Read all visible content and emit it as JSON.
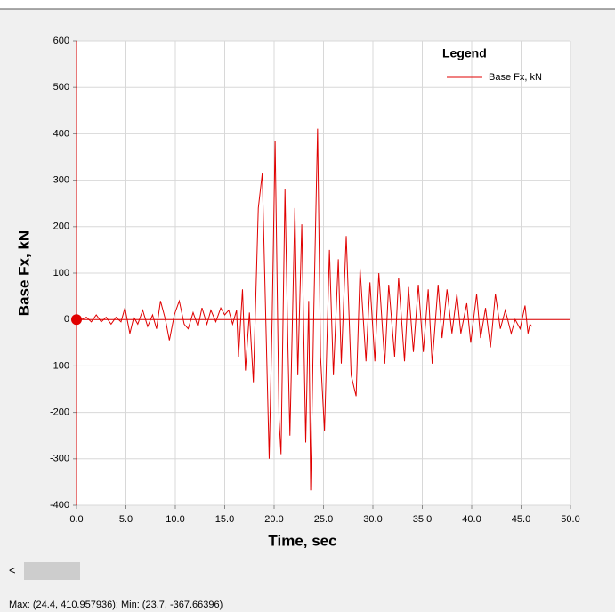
{
  "chart_data": {
    "type": "line",
    "ylabel": "Base Fx,  kN",
    "xlabel": "Time,  sec",
    "legend_title": "Legend",
    "legend": "top-right",
    "grid": true,
    "xlim": [
      0,
      50
    ],
    "ylim": [
      -400,
      600
    ],
    "xticks": [
      {
        "value": 0,
        "label": "0.0"
      },
      {
        "value": 5,
        "label": "5.0"
      },
      {
        "value": 10,
        "label": "10.0"
      },
      {
        "value": 15,
        "label": "15.0"
      },
      {
        "value": 20,
        "label": "20.0"
      },
      {
        "value": 25,
        "label": "25.0"
      },
      {
        "value": 30,
        "label": "30.0"
      },
      {
        "value": 35,
        "label": "35.0"
      },
      {
        "value": 40,
        "label": "40.0"
      },
      {
        "value": 45,
        "label": "45.0"
      },
      {
        "value": 50,
        "label": "50.0"
      }
    ],
    "yticks": [
      -400,
      -300,
      -200,
      -100,
      0,
      100,
      200,
      300,
      400,
      500,
      600
    ],
    "x": [
      0,
      0.5,
      1.0,
      1.5,
      2.0,
      2.5,
      3.0,
      3.5,
      4.0,
      4.5,
      4.9,
      5.4,
      5.8,
      6.2,
      6.7,
      7.2,
      7.7,
      8.1,
      8.5,
      9.0,
      9.4,
      9.9,
      10.4,
      10.9,
      11.3,
      11.8,
      12.3,
      12.7,
      13.2,
      13.6,
      14.1,
      14.6,
      15.0,
      15.4,
      15.8,
      16.2,
      16.4,
      16.8,
      17.1,
      17.5,
      17.9,
      18.4,
      18.8,
      19.5,
      19.8,
      20.1,
      20.5,
      20.7,
      21.1,
      21.4,
      21.6,
      22.1,
      22.4,
      22.8,
      23.2,
      23.5,
      23.7,
      24.0,
      24.4,
      24.7,
      25.1,
      25.6,
      26.0,
      26.5,
      26.8,
      27.3,
      27.8,
      28.3,
      28.7,
      29.3,
      29.7,
      30.2,
      30.6,
      31.2,
      31.6,
      32.2,
      32.6,
      33.2,
      33.6,
      34.1,
      34.6,
      35.1,
      35.6,
      36.0,
      36.6,
      37.0,
      37.5,
      38.0,
      38.5,
      38.9,
      39.5,
      39.9,
      40.5,
      40.9,
      41.4,
      41.9,
      42.4,
      42.9,
      43.4,
      44.0,
      44.4,
      44.9,
      45.4,
      45.7,
      45.9,
      46.1
    ],
    "series": [
      {
        "name": "Base Fx, kN",
        "color": "#e00000",
        "values": [
          0,
          0,
          5,
          -5,
          10,
          -5,
          5,
          -10,
          5,
          -5,
          25,
          -30,
          5,
          -10,
          20,
          -15,
          10,
          -20,
          40,
          0,
          -45,
          10,
          40,
          -10,
          -20,
          15,
          -15,
          25,
          -10,
          20,
          -5,
          25,
          10,
          20,
          -10,
          20,
          -80,
          65,
          -110,
          15,
          -135,
          240,
          315,
          -300,
          0,
          385,
          -215,
          -290,
          280,
          -60,
          -250,
          240,
          -120,
          205,
          -265,
          40,
          -368,
          0,
          411,
          -80,
          -240,
          150,
          -120,
          130,
          -95,
          180,
          -120,
          -165,
          110,
          -90,
          80,
          -90,
          100,
          -95,
          75,
          -80,
          90,
          -90,
          70,
          -70,
          75,
          -70,
          65,
          -95,
          75,
          -40,
          65,
          -30,
          55,
          -30,
          35,
          -50,
          55,
          -40,
          25,
          -60,
          55,
          -20,
          20,
          -30,
          0,
          -20,
          30,
          -30,
          -10,
          -15
        ]
      }
    ]
  },
  "status": "Max: (24.4, 410.957936);  Min: (23.7, -367.66396)"
}
